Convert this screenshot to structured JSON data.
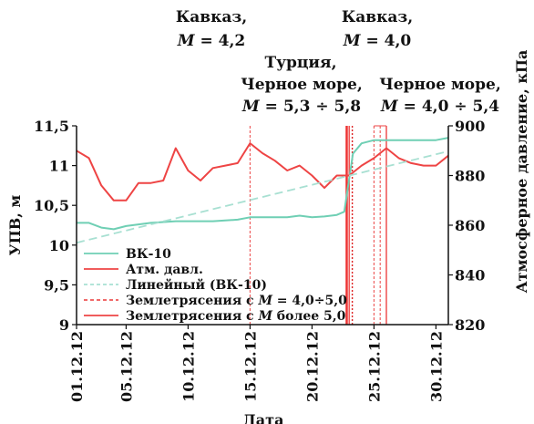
{
  "chart_data": {
    "type": "line",
    "xlabel": "Дата",
    "ylabel": "УПВ, м",
    "y2label": "Атмосферное давление, кПа",
    "ylim": [
      9,
      11.5
    ],
    "y2lim": [
      820,
      900
    ],
    "yticks": [
      "9",
      "9,5",
      "10",
      "10,5",
      "11",
      "11,5"
    ],
    "y2ticks": [
      "820",
      "840",
      "860",
      "880",
      "900"
    ],
    "xticks": [
      "01.12.12",
      "05.12.12",
      "10.12.12",
      "15.12.12",
      "20.12.12",
      "25.12.12",
      "30.12.12"
    ],
    "xtick_days": [
      1,
      5,
      10,
      15,
      20,
      25,
      30
    ],
    "xlim": [
      1,
      31
    ],
    "grid": false,
    "legend_position": "bottom-left",
    "series": [
      {
        "name": "ВК-10",
        "color": "#6fcfb4",
        "axis": "left",
        "x": [
          1,
          2,
          3,
          4,
          5,
          6,
          7,
          8,
          9,
          10,
          11,
          12,
          13,
          14,
          15,
          16,
          17,
          18,
          19,
          20,
          21,
          22,
          22.6,
          23.3,
          24,
          25,
          26,
          27,
          28,
          29,
          30,
          31
        ],
        "values": [
          10.28,
          10.28,
          10.22,
          10.2,
          10.24,
          10.26,
          10.28,
          10.29,
          10.3,
          10.3,
          10.3,
          10.3,
          10.31,
          10.32,
          10.35,
          10.35,
          10.35,
          10.35,
          10.37,
          10.35,
          10.36,
          10.38,
          10.42,
          11.15,
          11.28,
          11.32,
          11.32,
          11.32,
          11.32,
          11.32,
          11.32,
          11.35
        ]
      },
      {
        "name": "Атм. давл.",
        "color": "#ee4444",
        "axis": "right",
        "x": [
          1,
          2,
          3,
          4,
          5,
          6,
          7,
          8,
          9,
          10,
          11,
          12,
          13,
          14,
          15,
          16,
          17,
          18,
          19,
          20,
          21,
          22,
          23,
          24,
          25,
          26,
          27,
          28,
          29,
          30,
          31
        ],
        "values": [
          890,
          887,
          876,
          870,
          870,
          877,
          877,
          878,
          891,
          882,
          878,
          883,
          884,
          885,
          893,
          889,
          886,
          882,
          884,
          880,
          875,
          880,
          880,
          884,
          887,
          891,
          887,
          885,
          884,
          884,
          888
        ]
      },
      {
        "name": "Линейный (ВК-10)",
        "color": "#a8e0d2",
        "axis": "left",
        "dash": true,
        "x": [
          1,
          31
        ],
        "values": [
          10.03,
          11.18
        ]
      }
    ],
    "earthquakes": [
      {
        "legend": "Землетрясения с M = 4,0÷5,0",
        "style": "dashed",
        "color": "#ee5555",
        "days": [
          15,
          25,
          25.5
        ]
      },
      {
        "legend": "Землетрясения с M более 5,0",
        "style": "solid",
        "color": "#ee4444",
        "days": [
          23,
          26
        ]
      }
    ],
    "annotations": [
      {
        "lines": [
          "Кавказ,",
          "M = 4,2"
        ]
      },
      {
        "lines": [
          "Кавказ,",
          "M = 4,0"
        ]
      },
      {
        "lines": [
          "Турция,",
          "Черное море,",
          "M = 5,3 ÷ 5,8"
        ]
      },
      {
        "lines": [
          "Черное море,",
          "M = 4,0 ÷ 5,4"
        ]
      }
    ]
  },
  "legend": {
    "items": [
      {
        "label": "ВК-10",
        "color": "#6fcfb4",
        "style": "solid"
      },
      {
        "label": "Атм. давл.",
        "color": "#ee4444",
        "style": "solid"
      },
      {
        "label": "Линейный (ВК-10)",
        "color": "#a8e0d2",
        "style": "dashed"
      },
      {
        "label_pre": "Землетрясения с ",
        "label_m": "M",
        "label_post": " = 4,0÷5,0",
        "color": "#ee5555",
        "style": "dashed"
      },
      {
        "label_pre": "Землетрясения с ",
        "label_m": "M",
        "label_post": " более 5,0",
        "color": "#ee4444",
        "style": "solid"
      }
    ]
  }
}
